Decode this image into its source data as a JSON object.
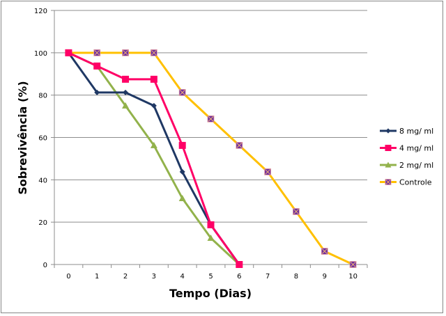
{
  "chart_data": {
    "type": "line",
    "title": "",
    "xlabel": "Tempo (Dias)",
    "ylabel": "Sobrevivência (%)",
    "categories": [
      "0",
      "1",
      "2",
      "3",
      "4",
      "5",
      "6",
      "7",
      "8",
      "9",
      "10"
    ],
    "ylim": [
      0,
      120
    ],
    "yticks": [
      "0",
      "20",
      "40",
      "60",
      "80",
      "100",
      "120"
    ],
    "grid": true,
    "legend_position": "right",
    "series": [
      {
        "name": "8 mg/ ml",
        "color": "#1F3864",
        "marker": "diamond",
        "values": [
          100,
          81.25,
          81.25,
          75,
          43.75,
          18.75,
          0,
          null,
          null,
          null,
          null
        ]
      },
      {
        "name": "4 mg/ ml",
        "color": "#FF0066",
        "marker": "square",
        "values": [
          100,
          93.75,
          87.5,
          87.5,
          56.25,
          18.75,
          0,
          null,
          null,
          null,
          null
        ]
      },
      {
        "name": "2 mg/ ml",
        "color": "#92B24B",
        "marker": "triangle",
        "values": [
          100,
          93.75,
          75,
          56.25,
          31.25,
          12.5,
          0,
          null,
          null,
          null,
          null
        ]
      },
      {
        "name": "Controle",
        "color": "#FFC000",
        "marker": "xsquare",
        "marker_color": "#7030A0",
        "values": [
          100,
          100,
          100,
          100,
          81.25,
          68.75,
          56.25,
          43.75,
          25,
          6.25,
          0
        ]
      }
    ]
  }
}
